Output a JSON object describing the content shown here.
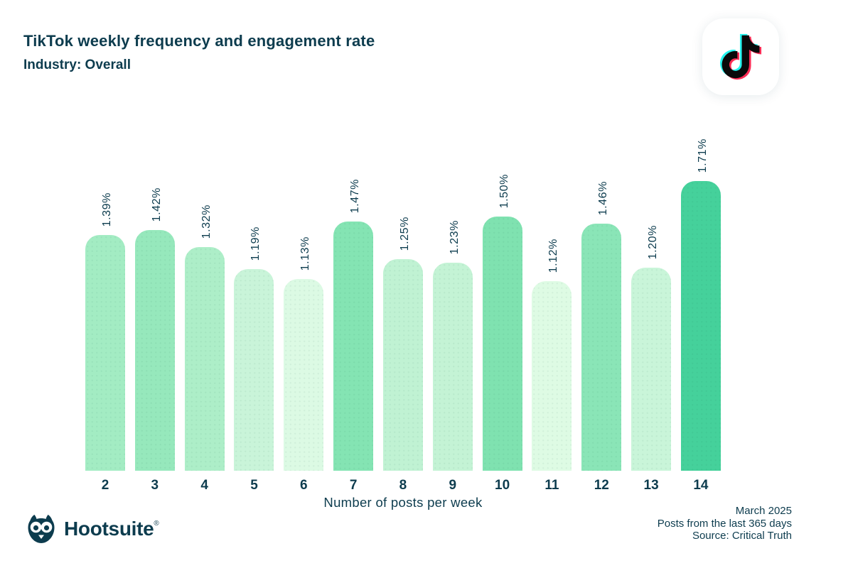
{
  "header": {
    "title": "TikTok weekly frequency and engagement rate",
    "subtitle": "Industry: Overall"
  },
  "tiktok_logo": {
    "colors": {
      "cyan": "#25f4ee",
      "pink": "#fe2c55",
      "black": "#0a0a0a"
    }
  },
  "chart_data": {
    "type": "bar",
    "title": "TikTok weekly frequency and engagement rate",
    "subtitle": "Industry: Overall",
    "categories": [
      "2",
      "3",
      "4",
      "5",
      "6",
      "7",
      "8",
      "9",
      "10",
      "11",
      "12",
      "13",
      "14"
    ],
    "values": [
      1.39,
      1.42,
      1.32,
      1.19,
      1.13,
      1.47,
      1.25,
      1.23,
      1.5,
      1.12,
      1.46,
      1.2,
      1.71
    ],
    "value_labels": [
      "1.39%",
      "1.42%",
      "1.32%",
      "1.19%",
      "1.13%",
      "1.47%",
      "1.25%",
      "1.23%",
      "1.50%",
      "1.12%",
      "1.46%",
      "1.20%",
      "1.71%"
    ],
    "bar_colors": [
      "#a3ecc3",
      "#96e8bc",
      "#adeec8",
      "#c9f4d9",
      "#dcfae4",
      "#84e4b3",
      "#c0f2d3",
      "#c4f3d5",
      "#7fe2b0",
      "#defbe4",
      "#8ae5b7",
      "#c9f5d9",
      "#45d19b"
    ],
    "xlabel": "Number of posts per week",
    "ylabel": "",
    "ylim": [
      0,
      1.71
    ],
    "grid": false,
    "legend": null,
    "value_label_rotation_deg": -90
  },
  "footer": {
    "brand": "Hootsuite",
    "registered": "®",
    "notes": [
      "March 2025",
      "Posts from the last 365 days",
      "Source: Critical Truth"
    ]
  },
  "colors": {
    "text": "#0d3c4e",
    "background": "#ffffff"
  }
}
